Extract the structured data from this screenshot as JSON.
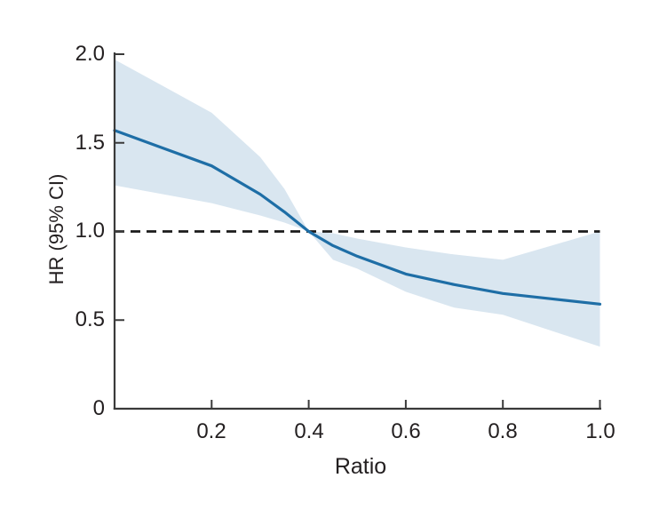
{
  "figure": {
    "background": "#ffffff"
  },
  "chart_data": {
    "type": "line",
    "title": "",
    "xlabel": "Ratio",
    "ylabel": "HR (95% CI)",
    "xlim": [
      0,
      1.0
    ],
    "ylim": [
      0,
      2.0
    ],
    "grid": false,
    "legend": "none",
    "x": [
      0,
      0.1,
      0.2,
      0.3,
      0.35,
      0.4,
      0.45,
      0.5,
      0.6,
      0.7,
      0.8,
      0.9,
      1.0
    ],
    "series": [
      {
        "name": "HR",
        "type": "line",
        "color": "#1e6ea6",
        "values": [
          1.57,
          1.47,
          1.37,
          1.21,
          1.11,
          1.0,
          0.92,
          0.86,
          0.76,
          0.7,
          0.65,
          0.62,
          0.59
        ]
      },
      {
        "name": "95% CI upper",
        "type": "band-upper",
        "color": "#d9e6f0",
        "values": [
          1.97,
          1.82,
          1.67,
          1.42,
          1.24,
          1.0,
          0.99,
          0.96,
          0.91,
          0.87,
          0.84,
          0.92,
          1.0
        ]
      },
      {
        "name": "95% CI lower",
        "type": "band-lower",
        "color": "#d9e6f0",
        "values": [
          1.26,
          1.21,
          1.16,
          1.09,
          1.05,
          1.0,
          0.84,
          0.79,
          0.66,
          0.57,
          0.53,
          0.44,
          0.35
        ]
      }
    ],
    "reference_line": {
      "y": 1.0,
      "style": "dashed",
      "color": "#1b1b1b"
    },
    "xticks": {
      "values": [
        0.2,
        0.4,
        0.6,
        0.8,
        1.0
      ],
      "labels": [
        "0.2",
        "0.4",
        "0.6",
        "0.8",
        "1.0"
      ]
    },
    "yticks": {
      "values": [
        0,
        0.5,
        1.0,
        1.5,
        2.0
      ],
      "labels": [
        "0",
        "0.5",
        "1.0",
        "1.5",
        "2.0"
      ]
    },
    "axis_color": "#3a3a3a",
    "text_color": "#231f20",
    "band_color": "#d9e6f0"
  }
}
